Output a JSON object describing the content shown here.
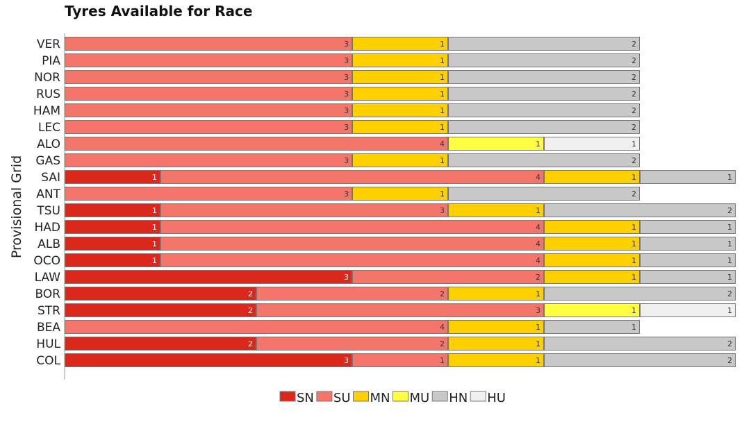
{
  "chart_data": {
    "type": "bar",
    "orientation": "horizontal",
    "stacked": true,
    "title": "Tyres Available for Race",
    "xlabel": "",
    "ylabel": "Provisional Grid",
    "xlim": [
      0,
      7
    ],
    "grid": false,
    "legend_position": "bottom",
    "categories": [
      "VER",
      "PIA",
      "NOR",
      "RUS",
      "HAM",
      "LEC",
      "ALO",
      "GAS",
      "SAI",
      "ANT",
      "TSU",
      "HAD",
      "ALB",
      "OCO",
      "LAW",
      "BOR",
      "STR",
      "BEA",
      "HUL",
      "COL"
    ],
    "series": [
      {
        "name": "SN",
        "color": "#da291c",
        "values": [
          0,
          0,
          0,
          0,
          0,
          0,
          0,
          0,
          1,
          0,
          1,
          1,
          1,
          1,
          3,
          2,
          2,
          0,
          2,
          3
        ]
      },
      {
        "name": "SU",
        "color": "#f4766a",
        "values": [
          3,
          3,
          3,
          3,
          3,
          3,
          4,
          3,
          4,
          3,
          3,
          4,
          4,
          4,
          2,
          2,
          3,
          4,
          2,
          1
        ]
      },
      {
        "name": "MN",
        "color": "#ffd000",
        "values": [
          1,
          1,
          1,
          1,
          1,
          1,
          0,
          1,
          1,
          1,
          1,
          1,
          1,
          1,
          1,
          1,
          0,
          1,
          1,
          1
        ]
      },
      {
        "name": "MU",
        "color": "#ffff3f",
        "values": [
          0,
          0,
          0,
          0,
          0,
          0,
          1,
          0,
          0,
          0,
          0,
          0,
          0,
          0,
          0,
          0,
          1,
          0,
          0,
          0
        ]
      },
      {
        "name": "HN",
        "color": "#c8c8c8",
        "values": [
          2,
          2,
          2,
          2,
          2,
          2,
          0,
          2,
          1,
          2,
          2,
          1,
          1,
          1,
          1,
          2,
          0,
          1,
          2,
          2
        ]
      },
      {
        "name": "HU",
        "color": "#f0f0f0",
        "values": [
          0,
          0,
          0,
          0,
          0,
          0,
          1,
          0,
          0,
          0,
          0,
          0,
          0,
          0,
          0,
          0,
          1,
          0,
          0,
          0
        ]
      }
    ]
  }
}
